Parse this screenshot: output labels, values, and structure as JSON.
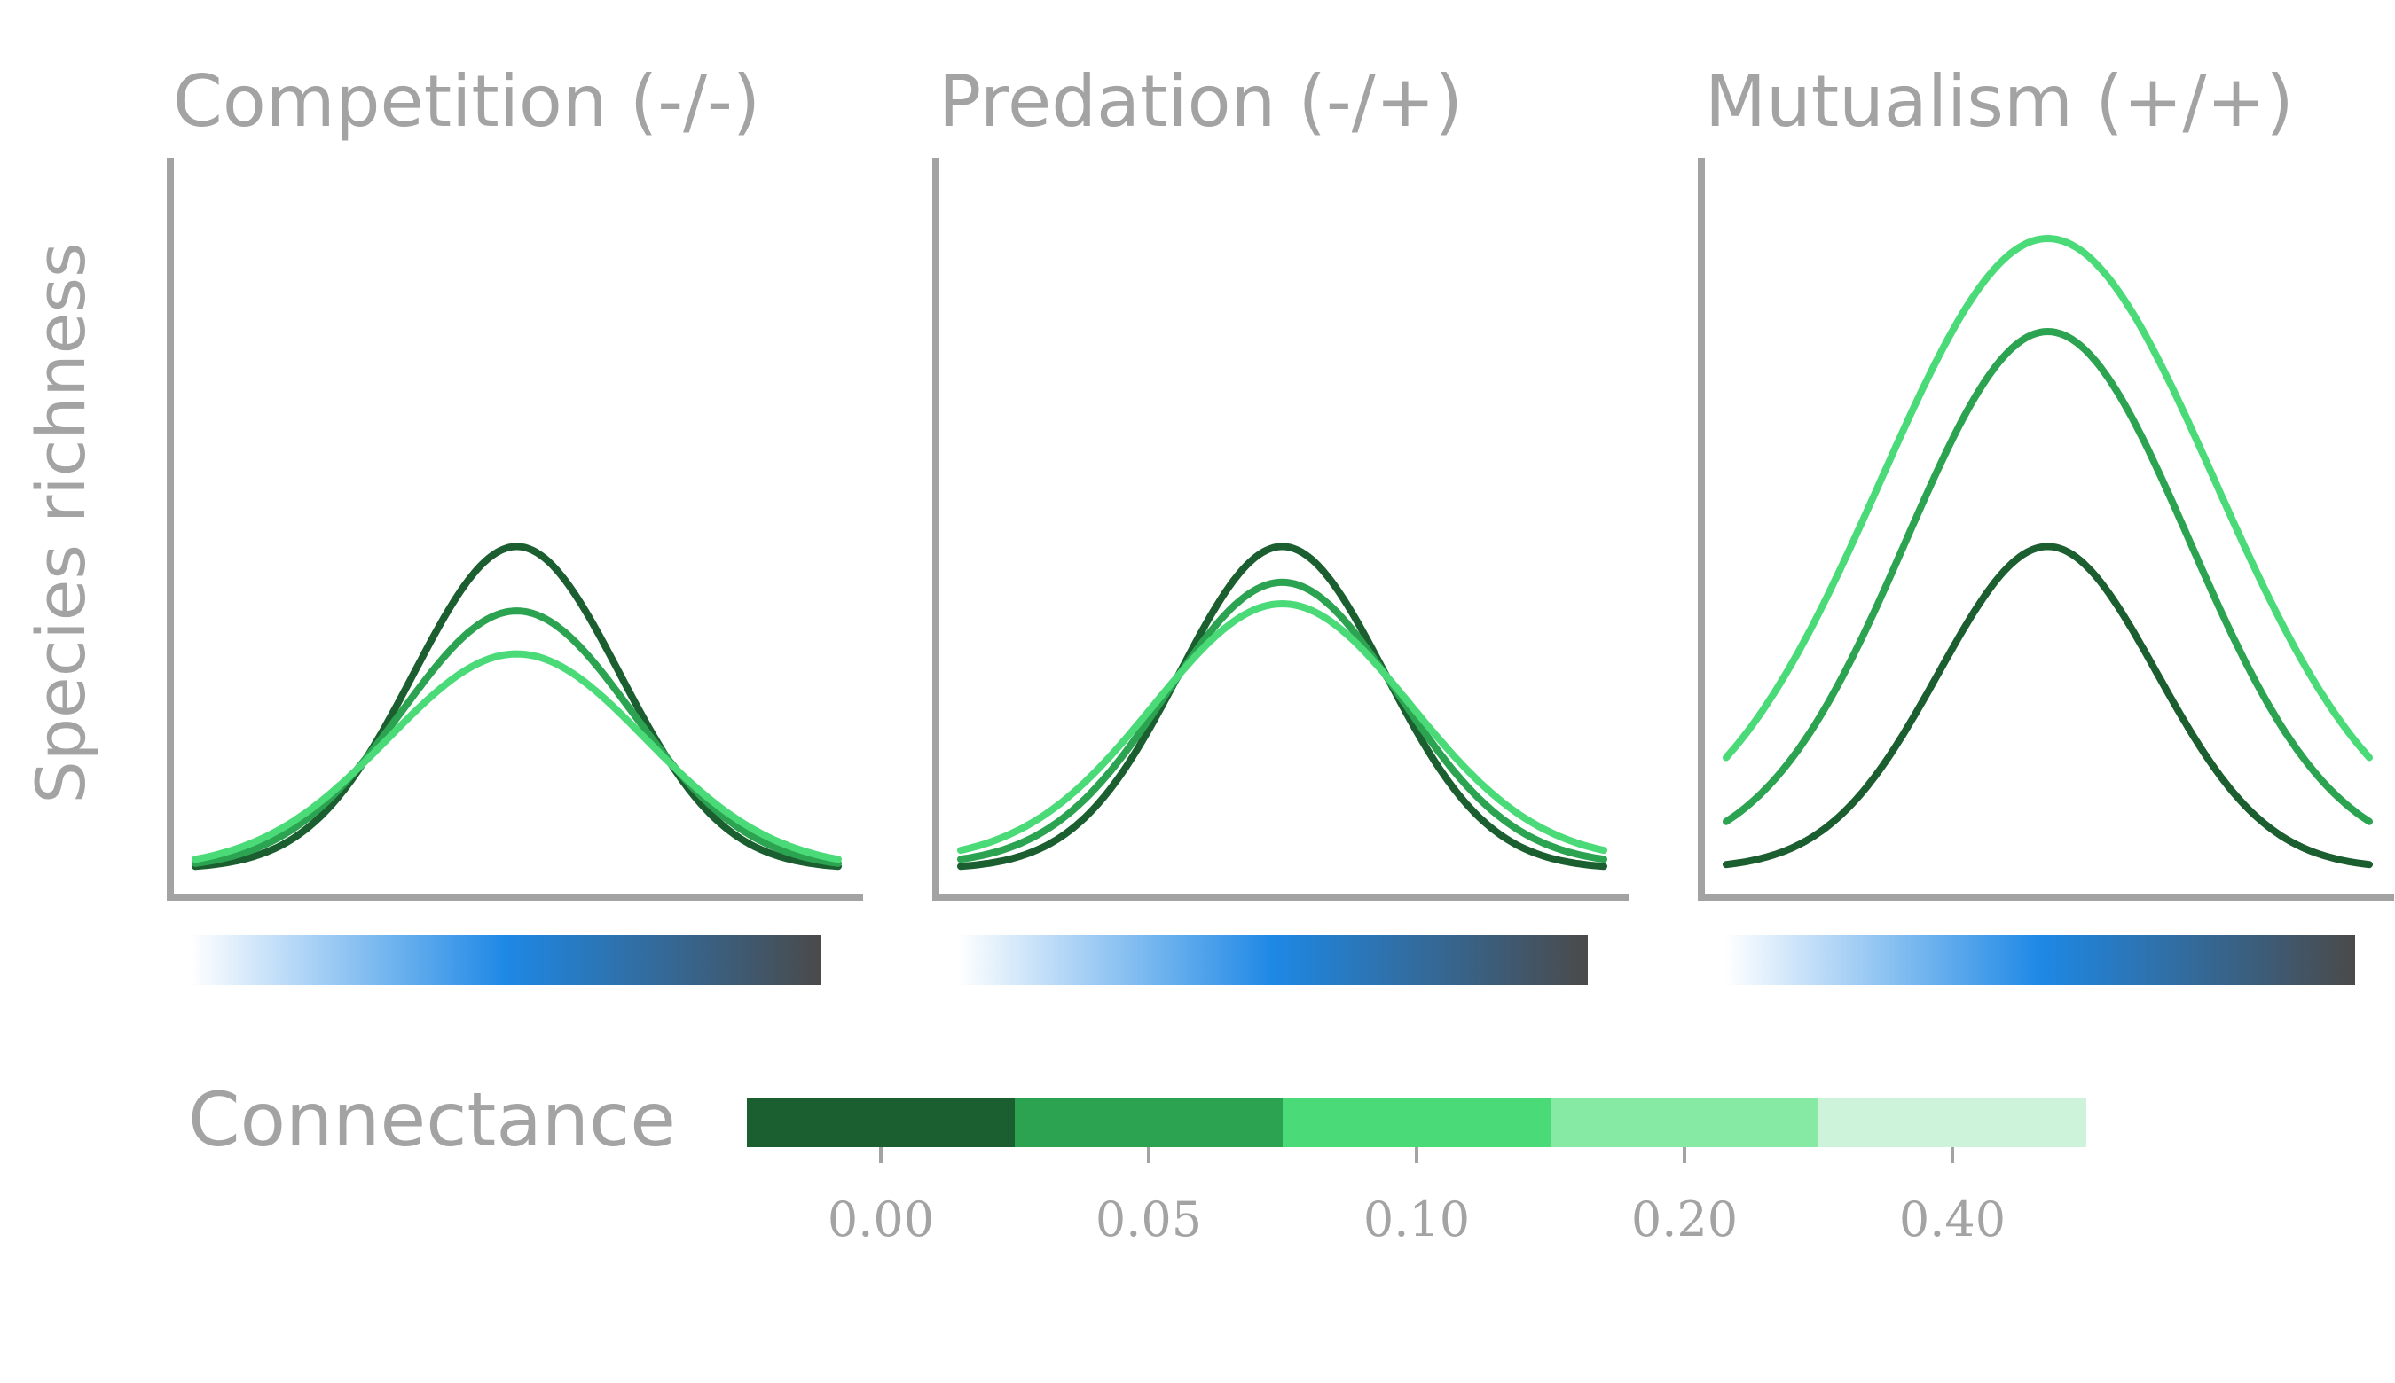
{
  "ylabel": "Species richness",
  "legend": {
    "title": "Connectance",
    "ticks": [
      "0.00",
      "0.05",
      "0.10",
      "0.20",
      "0.40"
    ],
    "colors": [
      "#1b5e2f",
      "#2ba350",
      "#4adb78",
      "#86eaa5",
      "#cdf4da"
    ]
  },
  "gradient_colors": [
    "#ffffff",
    "#1e88e5",
    "#4a4a4a"
  ],
  "chart_data": [
    {
      "type": "line",
      "title": "Competition (-/-)",
      "x_range": [
        0,
        1
      ],
      "ylim": [
        0,
        1
      ],
      "series": [
        {
          "connectance": "0.00",
          "color": "#1b5e2f",
          "peak": 0.45,
          "center": 0.5,
          "width": 0.16,
          "baseline": 0.0
        },
        {
          "connectance": "0.05",
          "color": "#2ba350",
          "peak": 0.36,
          "center": 0.5,
          "width": 0.18,
          "baseline": 0.0
        },
        {
          "connectance": "0.10",
          "color": "#4adb78",
          "peak": 0.3,
          "center": 0.5,
          "width": 0.2,
          "baseline": 0.0
        }
      ]
    },
    {
      "type": "line",
      "title": "Predation (-/+)",
      "x_range": [
        0,
        1
      ],
      "ylim": [
        0,
        1
      ],
      "series": [
        {
          "connectance": "0.00",
          "color": "#1b5e2f",
          "peak": 0.45,
          "center": 0.5,
          "width": 0.16,
          "baseline": 0.0
        },
        {
          "connectance": "0.05",
          "color": "#2ba350",
          "peak": 0.4,
          "center": 0.5,
          "width": 0.18,
          "baseline": 0.005
        },
        {
          "connectance": "0.10",
          "color": "#4adb78",
          "peak": 0.37,
          "center": 0.5,
          "width": 0.2,
          "baseline": 0.01
        }
      ]
    },
    {
      "type": "line",
      "title": "Mutualism (+/+)",
      "x_range": [
        0,
        1
      ],
      "ylim": [
        0,
        1
      ],
      "series": [
        {
          "connectance": "0.00",
          "color": "#1b5e2f",
          "peak": 0.45,
          "center": 0.5,
          "width": 0.17,
          "baseline": 0.0
        },
        {
          "connectance": "0.05",
          "color": "#2ba350",
          "peak": 0.75,
          "center": 0.5,
          "width": 0.22,
          "baseline": 0.01
        },
        {
          "connectance": "0.10",
          "color": "#4adb78",
          "peak": 0.88,
          "center": 0.5,
          "width": 0.26,
          "baseline": 0.02
        }
      ]
    }
  ]
}
